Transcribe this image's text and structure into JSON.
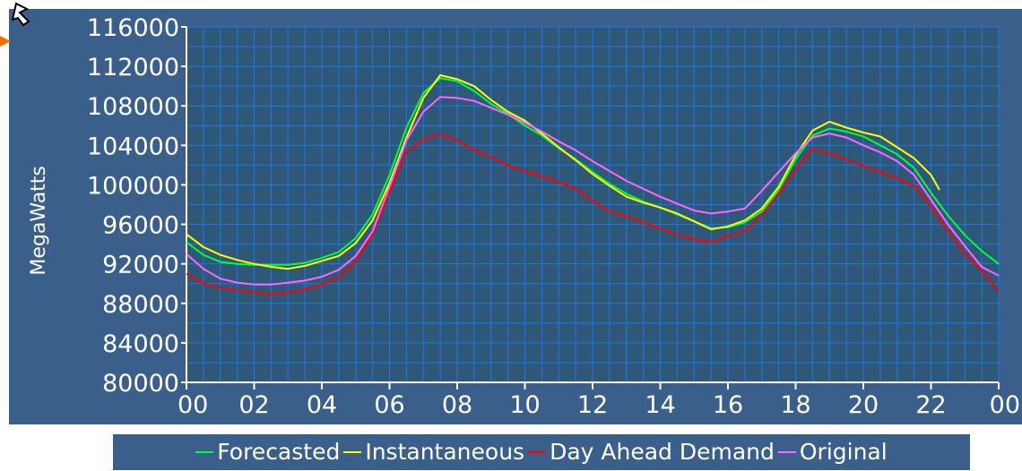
{
  "chart_data": {
    "type": "line",
    "title": "",
    "xlabel": "",
    "ylabel": "MegaWatts",
    "x_tick_labels": [
      "00",
      "02",
      "04",
      "06",
      "08",
      "10",
      "12",
      "14",
      "16",
      "18",
      "20",
      "22",
      "00"
    ],
    "x_range_hours": [
      0,
      24
    ],
    "y_ticks": [
      80000,
      84000,
      88000,
      92000,
      96000,
      100000,
      104000,
      108000,
      112000,
      116000
    ],
    "ylim": [
      80000,
      116000
    ],
    "grid": true,
    "legend_position": "bottom",
    "series": [
      {
        "name": "Forecasted",
        "color": "#00ff33",
        "x": [
          0,
          0.5,
          1,
          1.5,
          2,
          2.5,
          3,
          3.5,
          4,
          4.5,
          5,
          5.5,
          6,
          6.5,
          7,
          7.5,
          8,
          8.5,
          9,
          9.5,
          10,
          10.5,
          11,
          11.5,
          12,
          12.5,
          13,
          13.5,
          14,
          14.5,
          15,
          15.5,
          16,
          16.5,
          17,
          17.5,
          18,
          18.5,
          19,
          19.5,
          20,
          20.5,
          21,
          21.5,
          22,
          22.5,
          23,
          23.5,
          24
        ],
        "y": [
          94200,
          92900,
          92200,
          92000,
          91900,
          91900,
          91900,
          92100,
          92600,
          93200,
          94600,
          97000,
          101000,
          105800,
          109300,
          110800,
          110500,
          109500,
          108200,
          107200,
          106000,
          105000,
          103700,
          102600,
          101300,
          100100,
          99100,
          98300,
          97700,
          97000,
          96300,
          95600,
          95700,
          96200,
          97300,
          99500,
          102600,
          105000,
          105700,
          105400,
          104900,
          104000,
          103100,
          101700,
          99200,
          96900,
          94900,
          93300,
          92000
        ]
      },
      {
        "name": "Instantaneous",
        "color": "#ffff00",
        "x": [
          0,
          0.5,
          1,
          1.5,
          2,
          2.5,
          3,
          3.5,
          4,
          4.5,
          5,
          5.5,
          6,
          6.5,
          7,
          7.5,
          8,
          8.5,
          9,
          9.5,
          10,
          10.5,
          11,
          11.5,
          12,
          12.5,
          13,
          13.5,
          14,
          14.5,
          15,
          15.5,
          16,
          16.5,
          17,
          17.5,
          18,
          18.5,
          19,
          19.5,
          20,
          20.5,
          21,
          21.5,
          22,
          22.25
        ],
        "y": [
          95000,
          93700,
          92900,
          92400,
          92000,
          91700,
          91500,
          91800,
          92300,
          92800,
          94100,
          96400,
          100200,
          104800,
          108800,
          111100,
          110700,
          110000,
          108600,
          107400,
          106500,
          105200,
          103800,
          102500,
          101100,
          99900,
          98800,
          98200,
          97700,
          97100,
          96300,
          95500,
          95800,
          96400,
          97600,
          99800,
          103000,
          105500,
          106400,
          105800,
          105300,
          104900,
          103800,
          102700,
          101000,
          99500
        ]
      },
      {
        "name": "Day Ahead Demand",
        "color": "#ff0000",
        "x": [
          0,
          0.5,
          1,
          1.5,
          2,
          2.5,
          3,
          3.5,
          4,
          4.5,
          5,
          5.5,
          6,
          6.5,
          7,
          7.5,
          8,
          8.5,
          9,
          9.5,
          10,
          10.5,
          11,
          11.5,
          12,
          12.5,
          13,
          13.5,
          14,
          14.5,
          15,
          15.5,
          16,
          16.5,
          17,
          17.5,
          18,
          18.5,
          19,
          19.5,
          20,
          20.5,
          21,
          21.5,
          22,
          22.5,
          23,
          23.5,
          24
        ],
        "y": [
          91000,
          90000,
          89600,
          89300,
          89100,
          88900,
          89100,
          89400,
          89900,
          90600,
          92200,
          95000,
          99300,
          103300,
          104600,
          105100,
          104500,
          103500,
          102800,
          102000,
          101400,
          100900,
          100300,
          99600,
          98400,
          97300,
          96800,
          96200,
          95600,
          94900,
          94500,
          94200,
          94800,
          95300,
          97000,
          99100,
          101600,
          103600,
          103200,
          102600,
          101900,
          101300,
          100700,
          99900,
          97800,
          95300,
          93000,
          91300,
          89200
        ]
      },
      {
        "name": "Original",
        "color": "#ff66ff",
        "x": [
          0,
          0.5,
          1,
          1.5,
          2,
          2.5,
          3,
          3.5,
          4,
          4.5,
          5,
          5.5,
          6,
          6.5,
          7,
          7.5,
          8,
          8.5,
          9,
          9.5,
          10,
          10.5,
          11,
          11.5,
          12,
          12.5,
          13,
          13.5,
          14,
          14.5,
          15,
          15.5,
          16,
          16.5,
          17,
          17.5,
          18,
          18.5,
          19,
          19.5,
          20,
          20.5,
          21,
          21.5,
          22,
          22.5,
          23,
          23.5,
          24
        ],
        "y": [
          93000,
          91500,
          90500,
          90100,
          89900,
          89900,
          90100,
          90300,
          90700,
          91400,
          92800,
          95300,
          99800,
          104500,
          107400,
          108900,
          108800,
          108500,
          107800,
          107100,
          106300,
          105400,
          104400,
          103500,
          102400,
          101400,
          100400,
          99600,
          98800,
          98100,
          97400,
          97100,
          97300,
          97600,
          99400,
          101300,
          103200,
          104800,
          105200,
          104800,
          104000,
          103300,
          102400,
          101000,
          98500,
          96000,
          93800,
          91700,
          90800
        ]
      }
    ]
  },
  "colors": {
    "panel_background": "#3a5f8a",
    "plot_background": "#2f5878",
    "grid_lines": "#1a78e6",
    "text": "#ffffff"
  }
}
